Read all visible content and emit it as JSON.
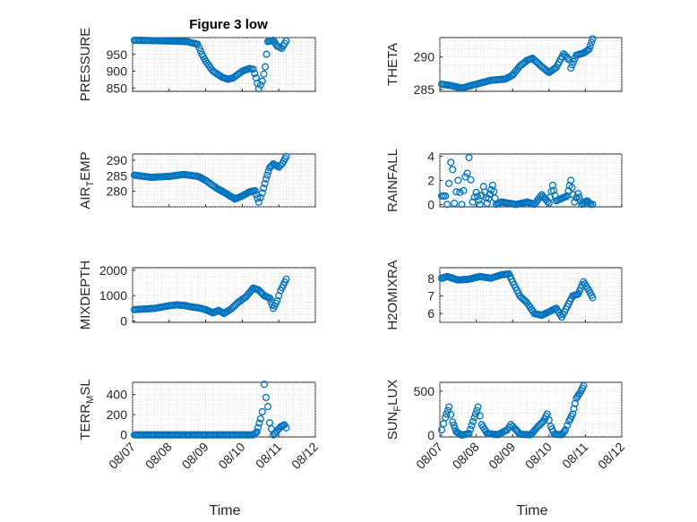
{
  "figure": {
    "title": "Figure 3 low",
    "xlabel": "Time",
    "marker_color": "#0072bd",
    "x_ticks": [
      "08/07",
      "08/08",
      "08/09",
      "08/10",
      "08/11",
      "08/12"
    ]
  },
  "chart_data": [
    {
      "type": "scatter",
      "name": "PRESSURE",
      "ylabel": "PRESSURE",
      "ylabel_sub": "",
      "ylim": [
        840,
        1000
      ],
      "yticks": [
        850,
        900,
        950
      ],
      "xlim": [
        0,
        5
      ],
      "series_keypoints": [
        [
          0.05,
          992
        ],
        [
          0.5,
          991
        ],
        [
          1.0,
          990
        ],
        [
          1.5,
          988
        ],
        [
          1.78,
          980
        ],
        [
          1.9,
          950
        ],
        [
          2.0,
          930
        ],
        [
          2.2,
          900
        ],
        [
          2.45,
          882
        ],
        [
          2.6,
          876
        ],
        [
          2.75,
          880
        ],
        [
          3.0,
          900
        ],
        [
          3.2,
          908
        ],
        [
          3.3,
          906
        ],
        [
          3.38,
          880
        ],
        [
          3.45,
          848
        ],
        [
          3.55,
          870
        ],
        [
          3.63,
          913
        ],
        [
          3.7,
          988
        ],
        [
          3.85,
          992
        ],
        [
          3.95,
          975
        ],
        [
          4.08,
          968
        ],
        [
          4.2,
          990
        ]
      ]
    },
    {
      "type": "scatter",
      "name": "THETA",
      "ylabel": "THETA",
      "ylabel_sub": "",
      "ylim": [
        284.7,
        293
      ],
      "yticks": [
        285,
        290
      ],
      "xlim": [
        0,
        5
      ],
      "series_keypoints": [
        [
          0.05,
          285.8
        ],
        [
          0.3,
          285.6
        ],
        [
          0.6,
          285.2
        ],
        [
          1.0,
          285.8
        ],
        [
          1.4,
          286.4
        ],
        [
          1.8,
          286.6
        ],
        [
          2.0,
          287.2
        ],
        [
          2.2,
          288.6
        ],
        [
          2.4,
          289.5
        ],
        [
          2.55,
          289.8
        ],
        [
          2.8,
          288.5
        ],
        [
          3.0,
          287.6
        ],
        [
          3.2,
          288.4
        ],
        [
          3.4,
          290.5
        ],
        [
          3.55,
          289.6
        ],
        [
          3.6,
          288.3
        ],
        [
          3.75,
          290.3
        ],
        [
          3.95,
          290.6
        ],
        [
          4.1,
          291.2
        ],
        [
          4.2,
          292.8
        ]
      ]
    },
    {
      "type": "scatter",
      "name": "AIR_TEMP",
      "ylabel": "AIR",
      "ylabel_sub": "T",
      "ylabel_rest": "EMP",
      "ylim": [
        275,
        292
      ],
      "yticks": [
        280,
        285,
        290
      ],
      "xlim": [
        0,
        5
      ],
      "series_keypoints": [
        [
          0.05,
          285.2
        ],
        [
          0.5,
          284.5
        ],
        [
          1.0,
          284.8
        ],
        [
          1.4,
          285.4
        ],
        [
          1.8,
          284.8
        ],
        [
          2.0,
          283.5
        ],
        [
          2.3,
          281.0
        ],
        [
          2.6,
          279.0
        ],
        [
          2.8,
          277.5
        ],
        [
          3.0,
          278.5
        ],
        [
          3.2,
          279.8
        ],
        [
          3.35,
          280.2
        ],
        [
          3.45,
          276.5
        ],
        [
          3.55,
          279.5
        ],
        [
          3.65,
          284.0
        ],
        [
          3.75,
          287.6
        ],
        [
          3.85,
          288.8
        ],
        [
          4.0,
          287.8
        ],
        [
          4.1,
          289.0
        ],
        [
          4.2,
          291.2
        ]
      ]
    },
    {
      "type": "scatter",
      "name": "RAINFALL",
      "ylabel": "RAINFALL",
      "ylabel_sub": "",
      "ylim": [
        -0.2,
        4.2
      ],
      "yticks": [
        0,
        2,
        4
      ],
      "xlim": [
        0,
        5
      ],
      "series_keypoints": [
        [
          0.05,
          0.7
        ],
        [
          0.15,
          0.7
        ],
        [
          0.2,
          0.0
        ],
        [
          0.3,
          3.5
        ],
        [
          0.35,
          2.9
        ],
        [
          0.4,
          0.1
        ],
        [
          0.5,
          2.0
        ],
        [
          0.6,
          0.0
        ],
        [
          0.7,
          2.3
        ],
        [
          0.75,
          2.6
        ],
        [
          0.8,
          3.9
        ],
        [
          0.9,
          0.2
        ],
        [
          1.0,
          1.0
        ],
        [
          1.1,
          0.0
        ],
        [
          1.2,
          1.5
        ],
        [
          1.3,
          0.1
        ],
        [
          1.45,
          1.6
        ],
        [
          1.55,
          0.0
        ],
        [
          1.7,
          0.2
        ],
        [
          1.9,
          0.1
        ],
        [
          2.1,
          0.0
        ],
        [
          2.4,
          0.2
        ],
        [
          2.6,
          0.0
        ],
        [
          2.8,
          0.8
        ],
        [
          3.0,
          0.1
        ],
        [
          3.1,
          1.6
        ],
        [
          3.2,
          0.3
        ],
        [
          3.35,
          0.5
        ],
        [
          3.5,
          0.7
        ],
        [
          3.6,
          2.0
        ],
        [
          3.7,
          0.2
        ],
        [
          3.8,
          0.9
        ],
        [
          3.9,
          0.0
        ],
        [
          4.05,
          0.3
        ],
        [
          4.15,
          0.0
        ],
        [
          4.2,
          0.0
        ]
      ]
    },
    {
      "type": "scatter",
      "name": "MIXDEPTH",
      "ylabel": "MIXDEPTH",
      "ylabel_sub": "",
      "ylim": [
        -50,
        2100
      ],
      "yticks": [
        0,
        1000,
        2000
      ],
      "xlim": [
        0,
        5
      ],
      "series_keypoints": [
        [
          0.05,
          450
        ],
        [
          0.4,
          480
        ],
        [
          0.6,
          500
        ],
        [
          0.8,
          550
        ],
        [
          1.0,
          600
        ],
        [
          1.2,
          640
        ],
        [
          1.4,
          620
        ],
        [
          1.6,
          560
        ],
        [
          1.8,
          520
        ],
        [
          2.0,
          450
        ],
        [
          2.2,
          320
        ],
        [
          2.35,
          420
        ],
        [
          2.5,
          300
        ],
        [
          2.7,
          480
        ],
        [
          2.9,
          750
        ],
        [
          3.1,
          950
        ],
        [
          3.3,
          1300
        ],
        [
          3.45,
          1220
        ],
        [
          3.6,
          1000
        ],
        [
          3.75,
          900
        ],
        [
          3.85,
          500
        ],
        [
          3.95,
          800
        ],
        [
          4.05,
          1200
        ],
        [
          4.2,
          1650
        ]
      ]
    },
    {
      "type": "scatter",
      "name": "H2OMIXRA",
      "ylabel": "H2OMIXRA",
      "ylabel_sub": "",
      "ylim": [
        5.5,
        8.6
      ],
      "yticks": [
        6,
        7,
        8
      ],
      "xlim": [
        0,
        5
      ],
      "series_keypoints": [
        [
          0.05,
          8.0
        ],
        [
          0.2,
          8.1
        ],
        [
          0.5,
          7.9
        ],
        [
          0.8,
          7.95
        ],
        [
          1.1,
          8.1
        ],
        [
          1.4,
          8.0
        ],
        [
          1.7,
          8.2
        ],
        [
          1.9,
          8.25
        ],
        [
          2.0,
          7.8
        ],
        [
          2.2,
          7.0
        ],
        [
          2.4,
          6.6
        ],
        [
          2.6,
          6.0
        ],
        [
          2.8,
          5.9
        ],
        [
          3.0,
          6.1
        ],
        [
          3.2,
          6.3
        ],
        [
          3.35,
          5.8
        ],
        [
          3.5,
          6.4
        ],
        [
          3.65,
          7.0
        ],
        [
          3.8,
          7.1
        ],
        [
          3.95,
          7.8
        ],
        [
          4.1,
          7.3
        ],
        [
          4.2,
          6.9
        ]
      ]
    },
    {
      "type": "scatter",
      "name": "TERR_MSL",
      "ylabel": "TERR",
      "ylabel_sub": "M",
      "ylabel_rest": "SL",
      "ylim": [
        -20,
        520
      ],
      "yticks": [
        0,
        200,
        400
      ],
      "xlim": [
        0,
        5
      ],
      "series_keypoints": [
        [
          0.05,
          0
        ],
        [
          1.0,
          0
        ],
        [
          2.0,
          0
        ],
        [
          3.0,
          0
        ],
        [
          3.3,
          0
        ],
        [
          3.4,
          30
        ],
        [
          3.5,
          160
        ],
        [
          3.55,
          230
        ],
        [
          3.6,
          500
        ],
        [
          3.65,
          370
        ],
        [
          3.7,
          280
        ],
        [
          3.75,
          120
        ],
        [
          3.8,
          60
        ],
        [
          3.85,
          0
        ],
        [
          3.95,
          40
        ],
        [
          4.05,
          80
        ],
        [
          4.15,
          100
        ],
        [
          4.2,
          70
        ]
      ]
    },
    {
      "type": "scatter",
      "name": "SUN_FLUX",
      "ylabel": "SUN",
      "ylabel_sub": "F",
      "ylabel_rest": "LUX",
      "ylim": [
        -20,
        600
      ],
      "yticks": [
        0,
        500
      ],
      "xlim": [
        0,
        5
      ],
      "series_keypoints": [
        [
          0.05,
          60
        ],
        [
          0.15,
          200
        ],
        [
          0.25,
          320
        ],
        [
          0.35,
          150
        ],
        [
          0.45,
          40
        ],
        [
          0.6,
          0
        ],
        [
          0.8,
          20
        ],
        [
          0.95,
          200
        ],
        [
          1.05,
          320
        ],
        [
          1.15,
          120
        ],
        [
          1.3,
          20
        ],
        [
          1.6,
          5
        ],
        [
          1.85,
          60
        ],
        [
          1.95,
          120
        ],
        [
          2.05,
          80
        ],
        [
          2.2,
          10
        ],
        [
          2.5,
          5
        ],
        [
          2.7,
          100
        ],
        [
          2.85,
          160
        ],
        [
          2.95,
          240
        ],
        [
          3.05,
          100
        ],
        [
          3.15,
          10
        ],
        [
          3.35,
          5
        ],
        [
          3.45,
          60
        ],
        [
          3.55,
          160
        ],
        [
          3.65,
          240
        ],
        [
          3.75,
          420
        ],
        [
          3.85,
          480
        ],
        [
          3.95,
          560
        ]
      ]
    }
  ]
}
